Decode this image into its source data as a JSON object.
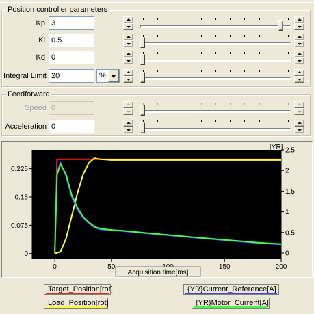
{
  "position_group": {
    "title": "Position controller parameters",
    "kp": {
      "label": "Kp",
      "value": "3",
      "slider_fraction": 0.95
    },
    "ki": {
      "label": "Ki",
      "value": "0.5",
      "slider_fraction": 0.0
    },
    "kd": {
      "label": "Kd",
      "value": "0",
      "slider_fraction": 0.0
    },
    "integral_limit": {
      "label": "Integral Limit",
      "value": "20",
      "unit": "%",
      "slider_fraction": 0.0
    }
  },
  "feedforward_group": {
    "title": "Feedforward",
    "speed": {
      "label": "Speed",
      "value": "0",
      "enabled": false,
      "slider_fraction": 0.0
    },
    "acceleration": {
      "label": "Acceleration",
      "value": "0",
      "slider_fraction": 0.0
    }
  },
  "chart_data": {
    "type": "line",
    "xlabel": "Acquisition time[ms]",
    "y2label": "[YR]",
    "xlim": [
      -20,
      200
    ],
    "ylim_left": [
      -0.015,
      0.275
    ],
    "ylim_right": [
      -0.15,
      2.5
    ],
    "x_ticks": [
      "0",
      "50",
      "100",
      "150",
      "200"
    ],
    "y_left_ticks": [
      "0",
      "0.075",
      "0.15",
      "0.225"
    ],
    "y_right_ticks": [
      "0",
      "0.5",
      "1",
      "1.5",
      "2",
      "2.5"
    ],
    "background": "#000000",
    "grid": false,
    "series": [
      {
        "name": "Target_Position[rot]",
        "axis": "left",
        "color": "#ff2020",
        "x": [
          0,
          2,
          50,
          100,
          150,
          200
        ],
        "y": [
          0,
          0.25,
          0.25,
          0.25,
          0.25,
          0.25
        ]
      },
      {
        "name": "Load_Position[rot]",
        "axis": "left",
        "color": "#ffff40",
        "x": [
          0,
          5,
          10,
          15,
          20,
          25,
          30,
          35,
          40,
          45,
          50,
          100,
          150,
          200
        ],
        "y": [
          0,
          0.005,
          0.04,
          0.1,
          0.16,
          0.21,
          0.24,
          0.253,
          0.25,
          0.249,
          0.248,
          0.248,
          0.248,
          0.248
        ]
      },
      {
        "name": "{YR}Current_Reference[A]",
        "axis": "right",
        "color": "#4040ff",
        "x": [
          0,
          2,
          5,
          10,
          15,
          20,
          25,
          30,
          35,
          40,
          50,
          60,
          80,
          100,
          120,
          150,
          180,
          200
        ],
        "y": [
          0,
          1.95,
          2.2,
          1.85,
          1.35,
          1.05,
          0.85,
          0.72,
          0.62,
          0.57,
          0.55,
          0.53,
          0.48,
          0.43,
          0.38,
          0.31,
          0.24,
          0.21
        ]
      },
      {
        "name": "{YR}Motor_Current[A]",
        "axis": "right",
        "color": "#40ff40",
        "x": [
          0,
          2,
          5,
          10,
          15,
          20,
          25,
          30,
          35,
          40,
          50,
          60,
          80,
          100,
          120,
          150,
          180,
          200
        ],
        "y": [
          0,
          1.9,
          2.15,
          1.9,
          1.4,
          1.1,
          0.88,
          0.75,
          0.64,
          0.59,
          0.56,
          0.54,
          0.49,
          0.44,
          0.39,
          0.32,
          0.25,
          0.22
        ]
      }
    ]
  },
  "legend": {
    "target_position": "Target_Position[rot]",
    "load_position": "Load_Position[rot]",
    "current_reference": "{YR}Current_Reference[A]",
    "motor_current": "{YR}Motor_Current[A]"
  }
}
